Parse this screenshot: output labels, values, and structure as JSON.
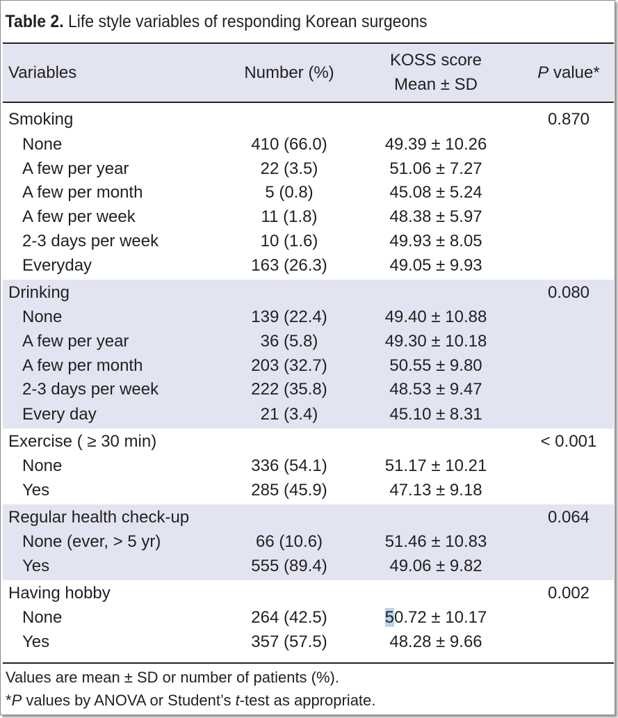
{
  "title": {
    "label": "Table 2.",
    "text": " Life style variables of responding Korean surgeons"
  },
  "header": {
    "variables": "Variables",
    "number": "Number (%)",
    "koss_line1": "KOSS score",
    "koss_line2": "Mean ± SD",
    "p_italic": "P",
    "p_rest": " value*"
  },
  "groups": [
    {
      "name": "Smoking",
      "p": "0.870",
      "rows": [
        {
          "label": "None",
          "number": "410 (66.0)",
          "score": "49.39 ± 10.26"
        },
        {
          "label": "A few per year",
          "number": "22 (3.5)",
          "score": "51.06 ± 7.27"
        },
        {
          "label": "A few per month",
          "number": "5 (0.8)",
          "score": "45.08 ± 5.24"
        },
        {
          "label": "A few per week",
          "number": "11 (1.8)",
          "score": "48.38 ± 5.97"
        },
        {
          "label": "2-3 days per week",
          "number": "10 (1.6)",
          "score": "49.93 ± 8.05"
        },
        {
          "label": "Everyday",
          "number": "163 (26.3)",
          "score": "49.05 ± 9.93"
        }
      ]
    },
    {
      "name": "Drinking",
      "p": "0.080",
      "rows": [
        {
          "label": "None",
          "number": "139 (22.4)",
          "score": "49.40 ± 10.88"
        },
        {
          "label": "A few per year",
          "number": "36 (5.8)",
          "score": "49.30 ± 10.18"
        },
        {
          "label": "A few per month",
          "number": "203 (32.7)",
          "score": "50.55 ± 9.80"
        },
        {
          "label": "2-3 days per week",
          "number": "222 (35.8)",
          "score": "48.53 ± 9.47"
        },
        {
          "label": "Every day",
          "number": "21 (3.4)",
          "score": "45.10 ± 8.31"
        }
      ]
    },
    {
      "name": "Exercise ( ≥ 30 min)",
      "p": "< 0.001",
      "rows": [
        {
          "label": "None",
          "number": "336 (54.1)",
          "score": "51.17 ± 10.21"
        },
        {
          "label": "Yes",
          "number": "285 (45.9)",
          "score": "47.13 ± 9.18"
        }
      ]
    },
    {
      "name": "Regular health check-up",
      "p": "0.064",
      "rows": [
        {
          "label": "None (ever,  > 5 yr)",
          "number": "66 (10.6)",
          "score": "51.46 ± 10.83"
        },
        {
          "label": "Yes",
          "number": "555 (89.4)",
          "score": "49.06 ± 9.82"
        }
      ]
    },
    {
      "name": "Having hobby",
      "p": "0.002",
      "rows": [
        {
          "label": "None",
          "number": "264 (42.5)",
          "score_first": "5",
          "score_rest": "0.72 ± 10.17"
        },
        {
          "label": "Yes",
          "number": "357 (57.5)",
          "score": "48.28 ± 9.66"
        }
      ]
    }
  ],
  "footnotes": {
    "line1": "Values are mean ± SD or number of patients (%).",
    "line2_star": "*",
    "line2_p": "P",
    "line2_mid": " values by ANOVA or Student’s ",
    "line2_t": "t",
    "line2_end": "-test as appropriate."
  }
}
